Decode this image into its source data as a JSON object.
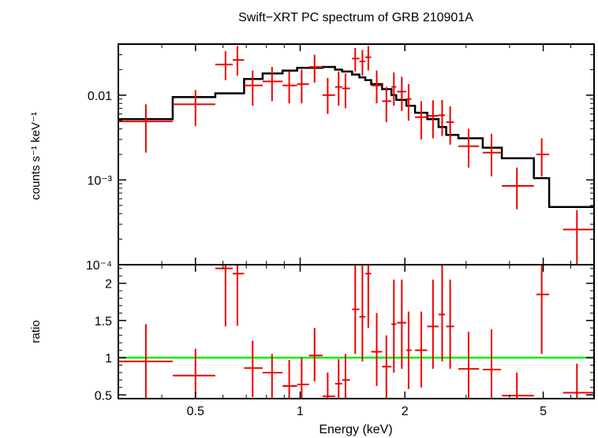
{
  "chart_data": [
    {
      "type": "scatter",
      "title": "Swift−XRT PC spectrum of GRB 210901A",
      "ylabel": "counts s⁻¹ keV⁻¹",
      "xlabel": "",
      "x_scale": "log",
      "y_scale": "log",
      "xlim": [
        0.3,
        7.0
      ],
      "ylim": [
        0.0001,
        0.04
      ],
      "y_ticks": [
        {
          "value": 0.01,
          "label": "0.01"
        },
        {
          "value": 0.001,
          "label": "10⁻³"
        },
        {
          "value": 0.0001,
          "label": "10⁻⁴"
        }
      ],
      "colors": {
        "data": "#ee0000",
        "model": "#000000"
      },
      "series": [
        {
          "kind": "data",
          "points": [
            {
              "x": 0.36,
              "xlo": 0.3,
              "xhi": 0.43,
              "y": 0.0049,
              "ylo": 0.0021,
              "yhi": 0.0078
            },
            {
              "x": 0.5,
              "xlo": 0.43,
              "xhi": 0.57,
              "y": 0.0078,
              "ylo": 0.0043,
              "yhi": 0.0115
            },
            {
              "x": 0.61,
              "xlo": 0.57,
              "xhi": 0.64,
              "y": 0.023,
              "ylo": 0.015,
              "yhi": 0.033
            },
            {
              "x": 0.66,
              "xlo": 0.64,
              "xhi": 0.69,
              "y": 0.026,
              "ylo": 0.017,
              "yhi": 0.038
            },
            {
              "x": 0.73,
              "xlo": 0.69,
              "xhi": 0.78,
              "y": 0.013,
              "ylo": 0.0075,
              "yhi": 0.0195
            },
            {
              "x": 0.83,
              "xlo": 0.78,
              "xhi": 0.89,
              "y": 0.0145,
              "ylo": 0.0085,
              "yhi": 0.0215
            },
            {
              "x": 0.93,
              "xlo": 0.89,
              "xhi": 0.98,
              "y": 0.013,
              "ylo": 0.008,
              "yhi": 0.019
            },
            {
              "x": 1.01,
              "xlo": 0.98,
              "xhi": 1.06,
              "y": 0.0135,
              "ylo": 0.008,
              "yhi": 0.02
            },
            {
              "x": 1.1,
              "xlo": 1.06,
              "xhi": 1.16,
              "y": 0.0215,
              "ylo": 0.014,
              "yhi": 0.03
            },
            {
              "x": 1.2,
              "xlo": 1.16,
              "xhi": 1.26,
              "y": 0.01,
              "ylo": 0.006,
              "yhi": 0.016
            },
            {
              "x": 1.29,
              "xlo": 1.26,
              "xhi": 1.32,
              "y": 0.0125,
              "ylo": 0.0075,
              "yhi": 0.019
            },
            {
              "x": 1.35,
              "xlo": 1.32,
              "xhi": 1.39,
              "y": 0.012,
              "ylo": 0.007,
              "yhi": 0.018
            },
            {
              "x": 1.44,
              "xlo": 1.41,
              "xhi": 1.48,
              "y": 0.027,
              "ylo": 0.019,
              "yhi": 0.036
            },
            {
              "x": 1.51,
              "xlo": 1.48,
              "xhi": 1.54,
              "y": 0.025,
              "ylo": 0.017,
              "yhi": 0.034
            },
            {
              "x": 1.57,
              "xlo": 1.54,
              "xhi": 1.6,
              "y": 0.028,
              "ylo": 0.0195,
              "yhi": 0.038
            },
            {
              "x": 1.66,
              "xlo": 1.6,
              "xhi": 1.72,
              "y": 0.013,
              "ylo": 0.008,
              "yhi": 0.0195
            },
            {
              "x": 1.77,
              "xlo": 1.72,
              "xhi": 1.83,
              "y": 0.0085,
              "ylo": 0.0048,
              "yhi": 0.0125
            },
            {
              "x": 1.86,
              "xlo": 1.83,
              "xhi": 1.89,
              "y": 0.0125,
              "ylo": 0.0075,
              "yhi": 0.0185
            },
            {
              "x": 1.96,
              "xlo": 1.9,
              "xhi": 2.02,
              "y": 0.011,
              "ylo": 0.0065,
              "yhi": 0.0165
            },
            {
              "x": 2.05,
              "xlo": 2.02,
              "xhi": 2.09,
              "y": 0.009,
              "ylo": 0.005,
              "yhi": 0.0135
            },
            {
              "x": 2.23,
              "xlo": 2.14,
              "xhi": 2.32,
              "y": 0.0055,
              "ylo": 0.003,
              "yhi": 0.0085
            },
            {
              "x": 2.41,
              "xlo": 2.32,
              "xhi": 2.5,
              "y": 0.0057,
              "ylo": 0.0031,
              "yhi": 0.0087
            },
            {
              "x": 2.56,
              "xlo": 2.5,
              "xhi": 2.61,
              "y": 0.0058,
              "ylo": 0.0033,
              "yhi": 0.0088
            },
            {
              "x": 2.7,
              "xlo": 2.63,
              "xhi": 2.77,
              "y": 0.0048,
              "ylo": 0.0026,
              "yhi": 0.0074
            },
            {
              "x": 3.05,
              "xlo": 2.85,
              "xhi": 3.27,
              "y": 0.0025,
              "ylo": 0.0014,
              "yhi": 0.004
            },
            {
              "x": 3.55,
              "xlo": 3.35,
              "xhi": 3.78,
              "y": 0.0021,
              "ylo": 0.0011,
              "yhi": 0.0035
            },
            {
              "x": 4.2,
              "xlo": 3.8,
              "xhi": 4.7,
              "y": 0.00085,
              "ylo": 0.00045,
              "yhi": 0.0014
            },
            {
              "x": 4.95,
              "xlo": 4.78,
              "xhi": 5.2,
              "y": 0.002,
              "ylo": 0.0011,
              "yhi": 0.0031
            },
            {
              "x": 6.25,
              "xlo": 5.7,
              "xhi": 7.0,
              "y": 0.00026,
              "ylo": 0.0001,
              "yhi": 0.00044
            }
          ]
        },
        {
          "kind": "model",
          "steps": [
            {
              "x0": 0.3,
              "x1": 0.43,
              "y": 0.0052
            },
            {
              "x0": 0.43,
              "x1": 0.57,
              "y": 0.0095
            },
            {
              "x0": 0.57,
              "x1": 0.69,
              "y": 0.0105
            },
            {
              "x0": 0.69,
              "x1": 0.78,
              "y": 0.0155
            },
            {
              "x0": 0.78,
              "x1": 0.89,
              "y": 0.018
            },
            {
              "x0": 0.89,
              "x1": 0.98,
              "y": 0.0195
            },
            {
              "x0": 0.98,
              "x1": 1.16,
              "y": 0.021
            },
            {
              "x0": 1.16,
              "x1": 1.26,
              "y": 0.0215
            },
            {
              "x0": 1.26,
              "x1": 1.32,
              "y": 0.02
            },
            {
              "x0": 1.32,
              "x1": 1.41,
              "y": 0.019
            },
            {
              "x0": 1.41,
              "x1": 1.48,
              "y": 0.0175
            },
            {
              "x0": 1.48,
              "x1": 1.54,
              "y": 0.0162
            },
            {
              "x0": 1.54,
              "x1": 1.6,
              "y": 0.015
            },
            {
              "x0": 1.6,
              "x1": 1.72,
              "y": 0.0135
            },
            {
              "x0": 1.72,
              "x1": 1.83,
              "y": 0.0118
            },
            {
              "x0": 1.83,
              "x1": 1.89,
              "y": 0.01
            },
            {
              "x0": 1.89,
              "x1": 2.02,
              "y": 0.0088
            },
            {
              "x0": 2.02,
              "x1": 2.14,
              "y": 0.0075
            },
            {
              "x0": 2.14,
              "x1": 2.32,
              "y": 0.0062
            },
            {
              "x0": 2.32,
              "x1": 2.5,
              "y": 0.0052
            },
            {
              "x0": 2.5,
              "x1": 2.63,
              "y": 0.0042
            },
            {
              "x0": 2.63,
              "x1": 2.85,
              "y": 0.0034
            },
            {
              "x0": 2.85,
              "x1": 3.35,
              "y": 0.0031
            },
            {
              "x0": 3.35,
              "x1": 3.8,
              "y": 0.0024
            },
            {
              "x0": 3.8,
              "x1": 4.7,
              "y": 0.0018
            },
            {
              "x0": 4.7,
              "x1": 5.2,
              "y": 0.00105
            },
            {
              "x0": 5.2,
              "x1": 7.0,
              "y": 0.00048
            }
          ]
        }
      ]
    },
    {
      "type": "scatter",
      "xlabel": "Energy (keV)",
      "ylabel": "ratio",
      "x_scale": "log",
      "y_scale": "linear",
      "xlim": [
        0.3,
        7.0
      ],
      "ylim": [
        0.45,
        2.25
      ],
      "x_ticks": [
        {
          "value": 0.5,
          "label": "0.5"
        },
        {
          "value": 1,
          "label": "1"
        },
        {
          "value": 2,
          "label": "2"
        },
        {
          "value": 5,
          "label": "5"
        }
      ],
      "y_ticks": [
        {
          "value": 0.5,
          "label": "0.5"
        },
        {
          "value": 1,
          "label": "1"
        },
        {
          "value": 1.5,
          "label": "1.5"
        },
        {
          "value": 2,
          "label": "2"
        }
      ],
      "reference_line": {
        "y": 1.0,
        "color": "#00ee00"
      },
      "colors": {
        "data": "#ee0000"
      },
      "series": [
        {
          "kind": "data",
          "points": [
            {
              "x": 0.36,
              "xlo": 0.3,
              "xhi": 0.43,
              "y": 0.95,
              "ylo": 0.45,
              "yhi": 1.45
            },
            {
              "x": 0.5,
              "xlo": 0.43,
              "xhi": 0.57,
              "y": 0.76,
              "ylo": 0.45,
              "yhi": 1.12
            },
            {
              "x": 0.61,
              "xlo": 0.57,
              "xhi": 0.64,
              "y": 2.2,
              "ylo": 1.42,
              "yhi": 2.25
            },
            {
              "x": 0.66,
              "xlo": 0.64,
              "xhi": 0.69,
              "y": 2.13,
              "ylo": 1.43,
              "yhi": 2.25
            },
            {
              "x": 0.73,
              "xlo": 0.69,
              "xhi": 0.78,
              "y": 0.86,
              "ylo": 0.47,
              "yhi": 1.23
            },
            {
              "x": 0.83,
              "xlo": 0.78,
              "xhi": 0.89,
              "y": 0.8,
              "ylo": 0.45,
              "yhi": 1.05
            },
            {
              "x": 0.93,
              "xlo": 0.89,
              "xhi": 0.98,
              "y": 0.62,
              "ylo": 0.45,
              "yhi": 0.97
            },
            {
              "x": 1.01,
              "xlo": 0.98,
              "xhi": 1.06,
              "y": 0.64,
              "ylo": 0.45,
              "yhi": 1.0
            },
            {
              "x": 1.1,
              "xlo": 1.06,
              "xhi": 1.16,
              "y": 1.03,
              "ylo": 0.68,
              "yhi": 1.4
            },
            {
              "x": 1.2,
              "xlo": 1.16,
              "xhi": 1.26,
              "y": 0.48,
              "ylo": 0.45,
              "yhi": 0.8
            },
            {
              "x": 1.29,
              "xlo": 1.26,
              "xhi": 1.32,
              "y": 0.65,
              "ylo": 0.45,
              "yhi": 0.98
            },
            {
              "x": 1.35,
              "xlo": 1.32,
              "xhi": 1.39,
              "y": 0.7,
              "ylo": 0.45,
              "yhi": 1.05
            },
            {
              "x": 1.44,
              "xlo": 1.41,
              "xhi": 1.48,
              "y": 1.65,
              "ylo": 1.05,
              "yhi": 2.25
            },
            {
              "x": 1.51,
              "xlo": 1.48,
              "xhi": 1.54,
              "y": 1.55,
              "ylo": 0.95,
              "yhi": 2.25
            },
            {
              "x": 1.57,
              "xlo": 1.54,
              "xhi": 1.6,
              "y": 2.13,
              "ylo": 1.4,
              "yhi": 2.25
            },
            {
              "x": 1.66,
              "xlo": 1.6,
              "xhi": 1.72,
              "y": 1.08,
              "ylo": 0.62,
              "yhi": 1.6
            },
            {
              "x": 1.77,
              "xlo": 1.72,
              "xhi": 1.83,
              "y": 0.88,
              "ylo": 0.45,
              "yhi": 1.3
            },
            {
              "x": 1.86,
              "xlo": 1.83,
              "xhi": 1.89,
              "y": 1.45,
              "ylo": 0.8,
              "yhi": 2.05
            },
            {
              "x": 1.96,
              "xlo": 1.9,
              "xhi": 2.02,
              "y": 1.47,
              "ylo": 0.85,
              "yhi": 2.05
            },
            {
              "x": 2.05,
              "xlo": 2.02,
              "xhi": 2.09,
              "y": 1.1,
              "ylo": 0.58,
              "yhi": 1.62
            },
            {
              "x": 2.23,
              "xlo": 2.14,
              "xhi": 2.32,
              "y": 1.1,
              "ylo": 0.6,
              "yhi": 1.62
            },
            {
              "x": 2.41,
              "xlo": 2.32,
              "xhi": 2.5,
              "y": 1.42,
              "ylo": 0.85,
              "yhi": 2.05
            },
            {
              "x": 2.56,
              "xlo": 2.5,
              "xhi": 2.61,
              "y": 1.58,
              "ylo": 0.95,
              "yhi": 2.25
            },
            {
              "x": 2.7,
              "xlo": 2.63,
              "xhi": 2.77,
              "y": 1.42,
              "ylo": 0.85,
              "yhi": 2.05
            },
            {
              "x": 3.05,
              "xlo": 2.85,
              "xhi": 3.27,
              "y": 0.85,
              "ylo": 0.45,
              "yhi": 1.35
            },
            {
              "x": 3.55,
              "xlo": 3.35,
              "xhi": 3.78,
              "y": 0.84,
              "ylo": 0.45,
              "yhi": 1.38
            },
            {
              "x": 4.2,
              "xlo": 3.8,
              "xhi": 4.7,
              "y": 0.49,
              "ylo": 0.45,
              "yhi": 0.8
            },
            {
              "x": 4.95,
              "xlo": 4.78,
              "xhi": 5.2,
              "y": 1.85,
              "ylo": 1.05,
              "yhi": 2.25
            },
            {
              "x": 6.25,
              "xlo": 5.7,
              "xhi": 7.0,
              "y": 0.53,
              "ylo": 0.45,
              "yhi": 0.92
            }
          ]
        }
      ]
    }
  ]
}
